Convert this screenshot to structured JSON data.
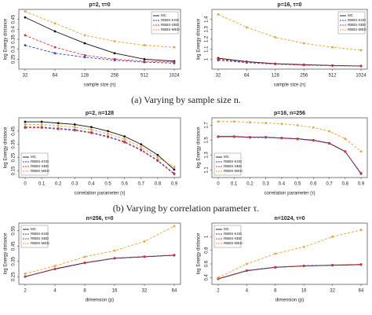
{
  "captions": [
    "(a) Varying by sample size n.",
    "(b) Varying by correlation parameter τ."
  ],
  "chart_data": [
    {
      "type": "line",
      "title": "p=2, τ=0",
      "x_label": "sample size (n)",
      "y_label": "log Energy distance",
      "categories": [
        "32",
        "64",
        "128",
        "256",
        "512",
        "1024"
      ],
      "ylim": [
        0.2,
        0.5
      ],
      "yticks": [
        0.25,
        0.3,
        0.35,
        0.4,
        0.45
      ],
      "legend": "top-right",
      "series": [
        {
          "name": "MC",
          "color": "#111111",
          "linestyle": "solid",
          "values": [
            0.46,
            0.39,
            0.33,
            0.28,
            0.25,
            0.24
          ]
        },
        {
          "name": "RBBS-KSD",
          "color": "#2a3fd6",
          "linestyle": "dashed",
          "values": [
            0.32,
            0.28,
            0.26,
            0.245,
            0.235,
            0.23
          ]
        },
        {
          "name": "RBBS-SBD",
          "color": "#e0303a",
          "linestyle": "dashed",
          "values": [
            0.37,
            0.31,
            0.27,
            0.25,
            0.24,
            0.235
          ]
        },
        {
          "name": "RBBS-MED",
          "color": "#f0a030",
          "linestyle": "dashed",
          "values": [
            0.49,
            0.43,
            0.37,
            0.34,
            0.32,
            0.31
          ]
        }
      ]
    },
    {
      "type": "line",
      "title": "p=16, τ=0",
      "x_label": "sample size (n)",
      "y_label": "log Energy distance",
      "categories": [
        "32",
        "64",
        "128",
        "256",
        "512",
        "1024"
      ],
      "ylim": [
        0.9,
        1.5
      ],
      "yticks": [
        1.0,
        1.1,
        1.2,
        1.3,
        1.4
      ],
      "legend": "top-right",
      "series": [
        {
          "name": "MC",
          "color": "#111111",
          "linestyle": "solid",
          "values": [
            1.01,
            0.975,
            0.955,
            0.945,
            0.937,
            0.932
          ]
        },
        {
          "name": "RBBS-KSD",
          "color": "#2a3fd6",
          "linestyle": "dashed",
          "values": [
            0.99,
            0.965,
            0.95,
            0.94,
            0.934,
            0.93
          ]
        },
        {
          "name": "RBBS-SBD",
          "color": "#e0303a",
          "linestyle": "dashed",
          "values": [
            1.0,
            0.97,
            0.952,
            0.942,
            0.935,
            0.931
          ]
        },
        {
          "name": "RBBS-MED",
          "color": "#f0a030",
          "linestyle": "dashed",
          "values": [
            1.45,
            1.32,
            1.22,
            1.16,
            1.12,
            1.09
          ]
        }
      ]
    },
    {
      "type": "line",
      "title": "p=2, n=128",
      "x_label": "correlation parameter (τ)",
      "y_label": "log Energy distance",
      "x": [
        0,
        0.1,
        0.2,
        0.3,
        0.4,
        0.5,
        0.6,
        0.7,
        0.8,
        0.9
      ],
      "xlim": [
        0,
        0.9
      ],
      "xticks": [
        0,
        0.1,
        0.2,
        0.3,
        0.4,
        0.5,
        0.6,
        0.7,
        0.8,
        0.9
      ],
      "ylim": [
        0.1,
        0.55
      ],
      "yticks": [
        0.15,
        0.25,
        0.35,
        0.45
      ],
      "legend": "bottom-left",
      "series": [
        {
          "name": "MC",
          "color": "#111111",
          "linestyle": "solid",
          "values": [
            0.52,
            0.52,
            0.51,
            0.5,
            0.48,
            0.45,
            0.41,
            0.35,
            0.27,
            0.16
          ]
        },
        {
          "name": "RBBS-KSD",
          "color": "#2a3fd6",
          "linestyle": "dashed",
          "values": [
            0.48,
            0.48,
            0.47,
            0.46,
            0.44,
            0.41,
            0.37,
            0.31,
            0.23,
            0.13
          ]
        },
        {
          "name": "RBBS-SBD",
          "color": "#e0303a",
          "linestyle": "dashed",
          "values": [
            0.475,
            0.475,
            0.465,
            0.455,
            0.435,
            0.405,
            0.365,
            0.305,
            0.225,
            0.125
          ]
        },
        {
          "name": "RBBS-MED",
          "color": "#f0a030",
          "linestyle": "dashed",
          "values": [
            0.5,
            0.5,
            0.49,
            0.48,
            0.46,
            0.43,
            0.39,
            0.33,
            0.25,
            0.18
          ]
        }
      ]
    },
    {
      "type": "line",
      "title": "p=16, n=256",
      "x_label": "correlation parameter (τ)",
      "y_label": "log Energy distance",
      "x": [
        0,
        0.1,
        0.2,
        0.3,
        0.4,
        0.5,
        0.6,
        0.7,
        0.8,
        0.9
      ],
      "xlim": [
        0,
        0.9
      ],
      "xticks": [
        0,
        0.1,
        0.2,
        0.3,
        0.4,
        0.5,
        0.6,
        0.7,
        0.8,
        0.9
      ],
      "ylim": [
        1.0,
        1.8
      ],
      "yticks": [
        1.1,
        1.3,
        1.5,
        1.7
      ],
      "legend": "bottom-left",
      "series": [
        {
          "name": "MC",
          "color": "#111111",
          "linestyle": "solid",
          "values": [
            1.55,
            1.55,
            1.54,
            1.54,
            1.53,
            1.52,
            1.5,
            1.46,
            1.35,
            1.05
          ]
        },
        {
          "name": "RBBS-KSD",
          "color": "#2a3fd6",
          "linestyle": "dashed",
          "values": [
            1.55,
            1.55,
            1.54,
            1.54,
            1.53,
            1.52,
            1.5,
            1.46,
            1.35,
            1.05
          ]
        },
        {
          "name": "RBBS-SBD",
          "color": "#e0303a",
          "linestyle": "dashed",
          "values": [
            1.545,
            1.545,
            1.535,
            1.535,
            1.525,
            1.515,
            1.495,
            1.455,
            1.345,
            1.06
          ]
        },
        {
          "name": "RBBS-MED",
          "color": "#f0a030",
          "linestyle": "dashed",
          "values": [
            1.75,
            1.75,
            1.74,
            1.73,
            1.72,
            1.7,
            1.67,
            1.62,
            1.52,
            1.35
          ]
        }
      ]
    },
    {
      "type": "line",
      "title": "n=256, τ=0",
      "x_label": "dimension (p)",
      "y_label": "log Energy distance",
      "categories": [
        "2",
        "4",
        "8",
        "16",
        "32",
        "64"
      ],
      "ylim": [
        0.2,
        0.6
      ],
      "yticks": [
        0.25,
        0.35,
        0.45,
        0.55
      ],
      "legend": "top-left",
      "series": [
        {
          "name": "MC",
          "color": "#111111",
          "linestyle": "solid",
          "values": [
            0.25,
            0.3,
            0.34,
            0.37,
            0.38,
            0.39
          ]
        },
        {
          "name": "RBBS-KSD",
          "color": "#2a3fd6",
          "linestyle": "dashed",
          "values": [
            0.25,
            0.3,
            0.34,
            0.37,
            0.38,
            0.39
          ]
        },
        {
          "name": "RBBS-SBD",
          "color": "#e0303a",
          "linestyle": "dashed",
          "values": [
            0.252,
            0.302,
            0.342,
            0.372,
            0.382,
            0.392
          ]
        },
        {
          "name": "RBBS-MED",
          "color": "#f0a030",
          "linestyle": "dashed",
          "values": [
            0.27,
            0.32,
            0.38,
            0.42,
            0.48,
            0.58
          ]
        }
      ]
    },
    {
      "type": "line",
      "title": "n=1024, τ=0",
      "x_label": "dimension (p)",
      "y_label": "log Energy distance",
      "categories": [
        "2",
        "4",
        "8",
        "16",
        "32",
        "64"
      ],
      "ylim": [
        0.3,
        1.2
      ],
      "yticks": [
        0.4,
        0.6,
        0.8,
        1.0
      ],
      "legend": "top-left",
      "series": [
        {
          "name": "MC",
          "color": "#111111",
          "linestyle": "solid",
          "values": [
            0.38,
            0.5,
            0.55,
            0.57,
            0.58,
            0.59
          ]
        },
        {
          "name": "RBBS-KSD",
          "color": "#2a3fd6",
          "linestyle": "dashed",
          "values": [
            0.38,
            0.5,
            0.55,
            0.57,
            0.58,
            0.59
          ]
        },
        {
          "name": "RBBS-SBD",
          "color": "#e0303a",
          "linestyle": "dashed",
          "values": [
            0.385,
            0.505,
            0.555,
            0.575,
            0.585,
            0.595
          ]
        },
        {
          "name": "RBBS-MED",
          "color": "#f0a030",
          "linestyle": "dashed",
          "values": [
            0.4,
            0.6,
            0.75,
            0.85,
            1.0,
            1.1
          ]
        }
      ]
    }
  ]
}
